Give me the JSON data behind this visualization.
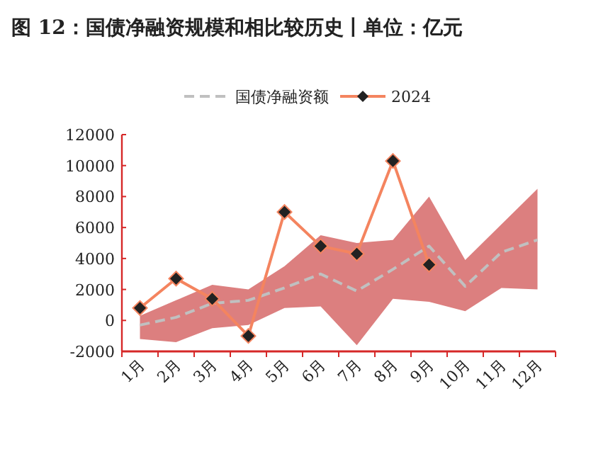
{
  "chart_data": {
    "type": "line",
    "title": "图 12：国债净融资规模和相比较历史丨单位：亿元",
    "categories": [
      "1月",
      "2月",
      "3月",
      "4月",
      "5月",
      "6月",
      "7月",
      "8月",
      "9月",
      "10月",
      "11月",
      "12月"
    ],
    "series": [
      {
        "name": "国债净融资额",
        "color": "#c0c0c0",
        "line_style": "dashed",
        "marker": "none",
        "values": [
          -300,
          200,
          1100,
          1300,
          2100,
          3000,
          1900,
          3300,
          4800,
          2200,
          4400,
          5200
        ],
        "lower": [
          -1200,
          -1400,
          -500,
          -300,
          800,
          900,
          -1600,
          1400,
          1200,
          600,
          2100,
          2000
        ],
        "upper": [
          300,
          1300,
          2300,
          2000,
          3500,
          5500,
          5000,
          5200,
          8000,
          3900,
          6200,
          8500
        ]
      },
      {
        "name": "2024",
        "color": "#f4845f",
        "line_style": "solid",
        "marker": "diamond",
        "values": [
          800,
          2700,
          1400,
          -1000,
          7000,
          4800,
          4300,
          10300,
          3600,
          null,
          null,
          null
        ]
      }
    ],
    "ylim": [
      -2000,
      12000
    ],
    "yticks": [
      -2000,
      0,
      2000,
      4000,
      6000,
      8000,
      10000,
      12000
    ],
    "legend": "top"
  }
}
